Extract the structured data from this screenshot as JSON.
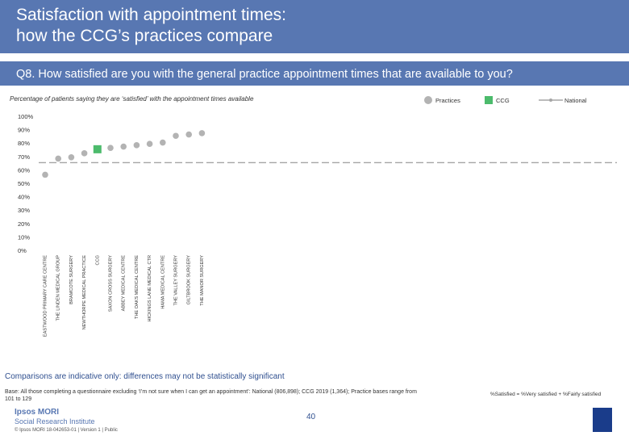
{
  "header": {
    "title": "Satisfaction with appointment times:\nhow the CCG’s practices compare",
    "question": "Q8. How satisfied are you with the general practice appointment times that are available to you?"
  },
  "chart_data": {
    "type": "dot",
    "subtitle": "Percentage of patients saying they are ‘satisfied’ with the appointment times available",
    "categories": [
      "EASTWOOD PRIMARY CARE CENTRE",
      "THE LINDEN MEDICAL GROUP",
      "BRAMCOTE SURGERY",
      "NEWTHORPE MEDICAL PRACTICE",
      "CCG",
      "SAXON CROSS SURGERY",
      "ABBEY MEDICAL CENTRE",
      "THE OAKS MEDICAL CENTRE",
      "HICKINGS LANE MEDICAL CTR",
      "HAMA MEDICAL CENTRE",
      "THE VALLEY SURGERY",
      "GILTBROOK SURGERY",
      "THE MANOR SURGERY"
    ],
    "series": [
      {
        "name": "Practices",
        "color": "#b3b3b3",
        "marker": "circle",
        "values": [
          57,
          69,
          70,
          73,
          null,
          77,
          78,
          79,
          80,
          81,
          86,
          87,
          88
        ]
      },
      {
        "name": "CCG",
        "color": "#4cbb6c",
        "marker": "square",
        "values": [
          null,
          null,
          null,
          null,
          76,
          null,
          null,
          null,
          null,
          null,
          null,
          null,
          null
        ]
      },
      {
        "name": "National",
        "color": "#a6a6a6",
        "marker": "line",
        "value": 66
      }
    ],
    "ylim": [
      0,
      100
    ],
    "yticks": [
      {
        "value": 0,
        "label": "0%"
      },
      {
        "value": 10,
        "label": "10%"
      },
      {
        "value": 20,
        "label": "20%"
      },
      {
        "value": 30,
        "label": "30%"
      },
      {
        "value": 40,
        "label": "40%"
      },
      {
        "value": 50,
        "label": "50%"
      },
      {
        "value": 60,
        "label": "60%"
      },
      {
        "value": 70,
        "label": "70%"
      },
      {
        "value": 80,
        "label": "80%"
      },
      {
        "value": 90,
        "label": "90%"
      },
      {
        "value": 100,
        "label": "100%"
      }
    ],
    "grid": false
  },
  "footer": {
    "note": "Comparisons are indicative only: differences may not be statistically significant",
    "base": "Base: All those completing a questionnaire excluding ‘I’m not sure when I can get an appointment’: National (806,898); CCG 2019 (1,364); Practice bases range from 101 to 129",
    "definition": "%Satisfied = %Very satisfied + %Fairly satisfied",
    "logo": "Ipsos MORI",
    "institute": "Social Research Institute",
    "copyright": "© Ipsos MORI    18-042653-01 | Version 1 | Public",
    "page": "40"
  }
}
